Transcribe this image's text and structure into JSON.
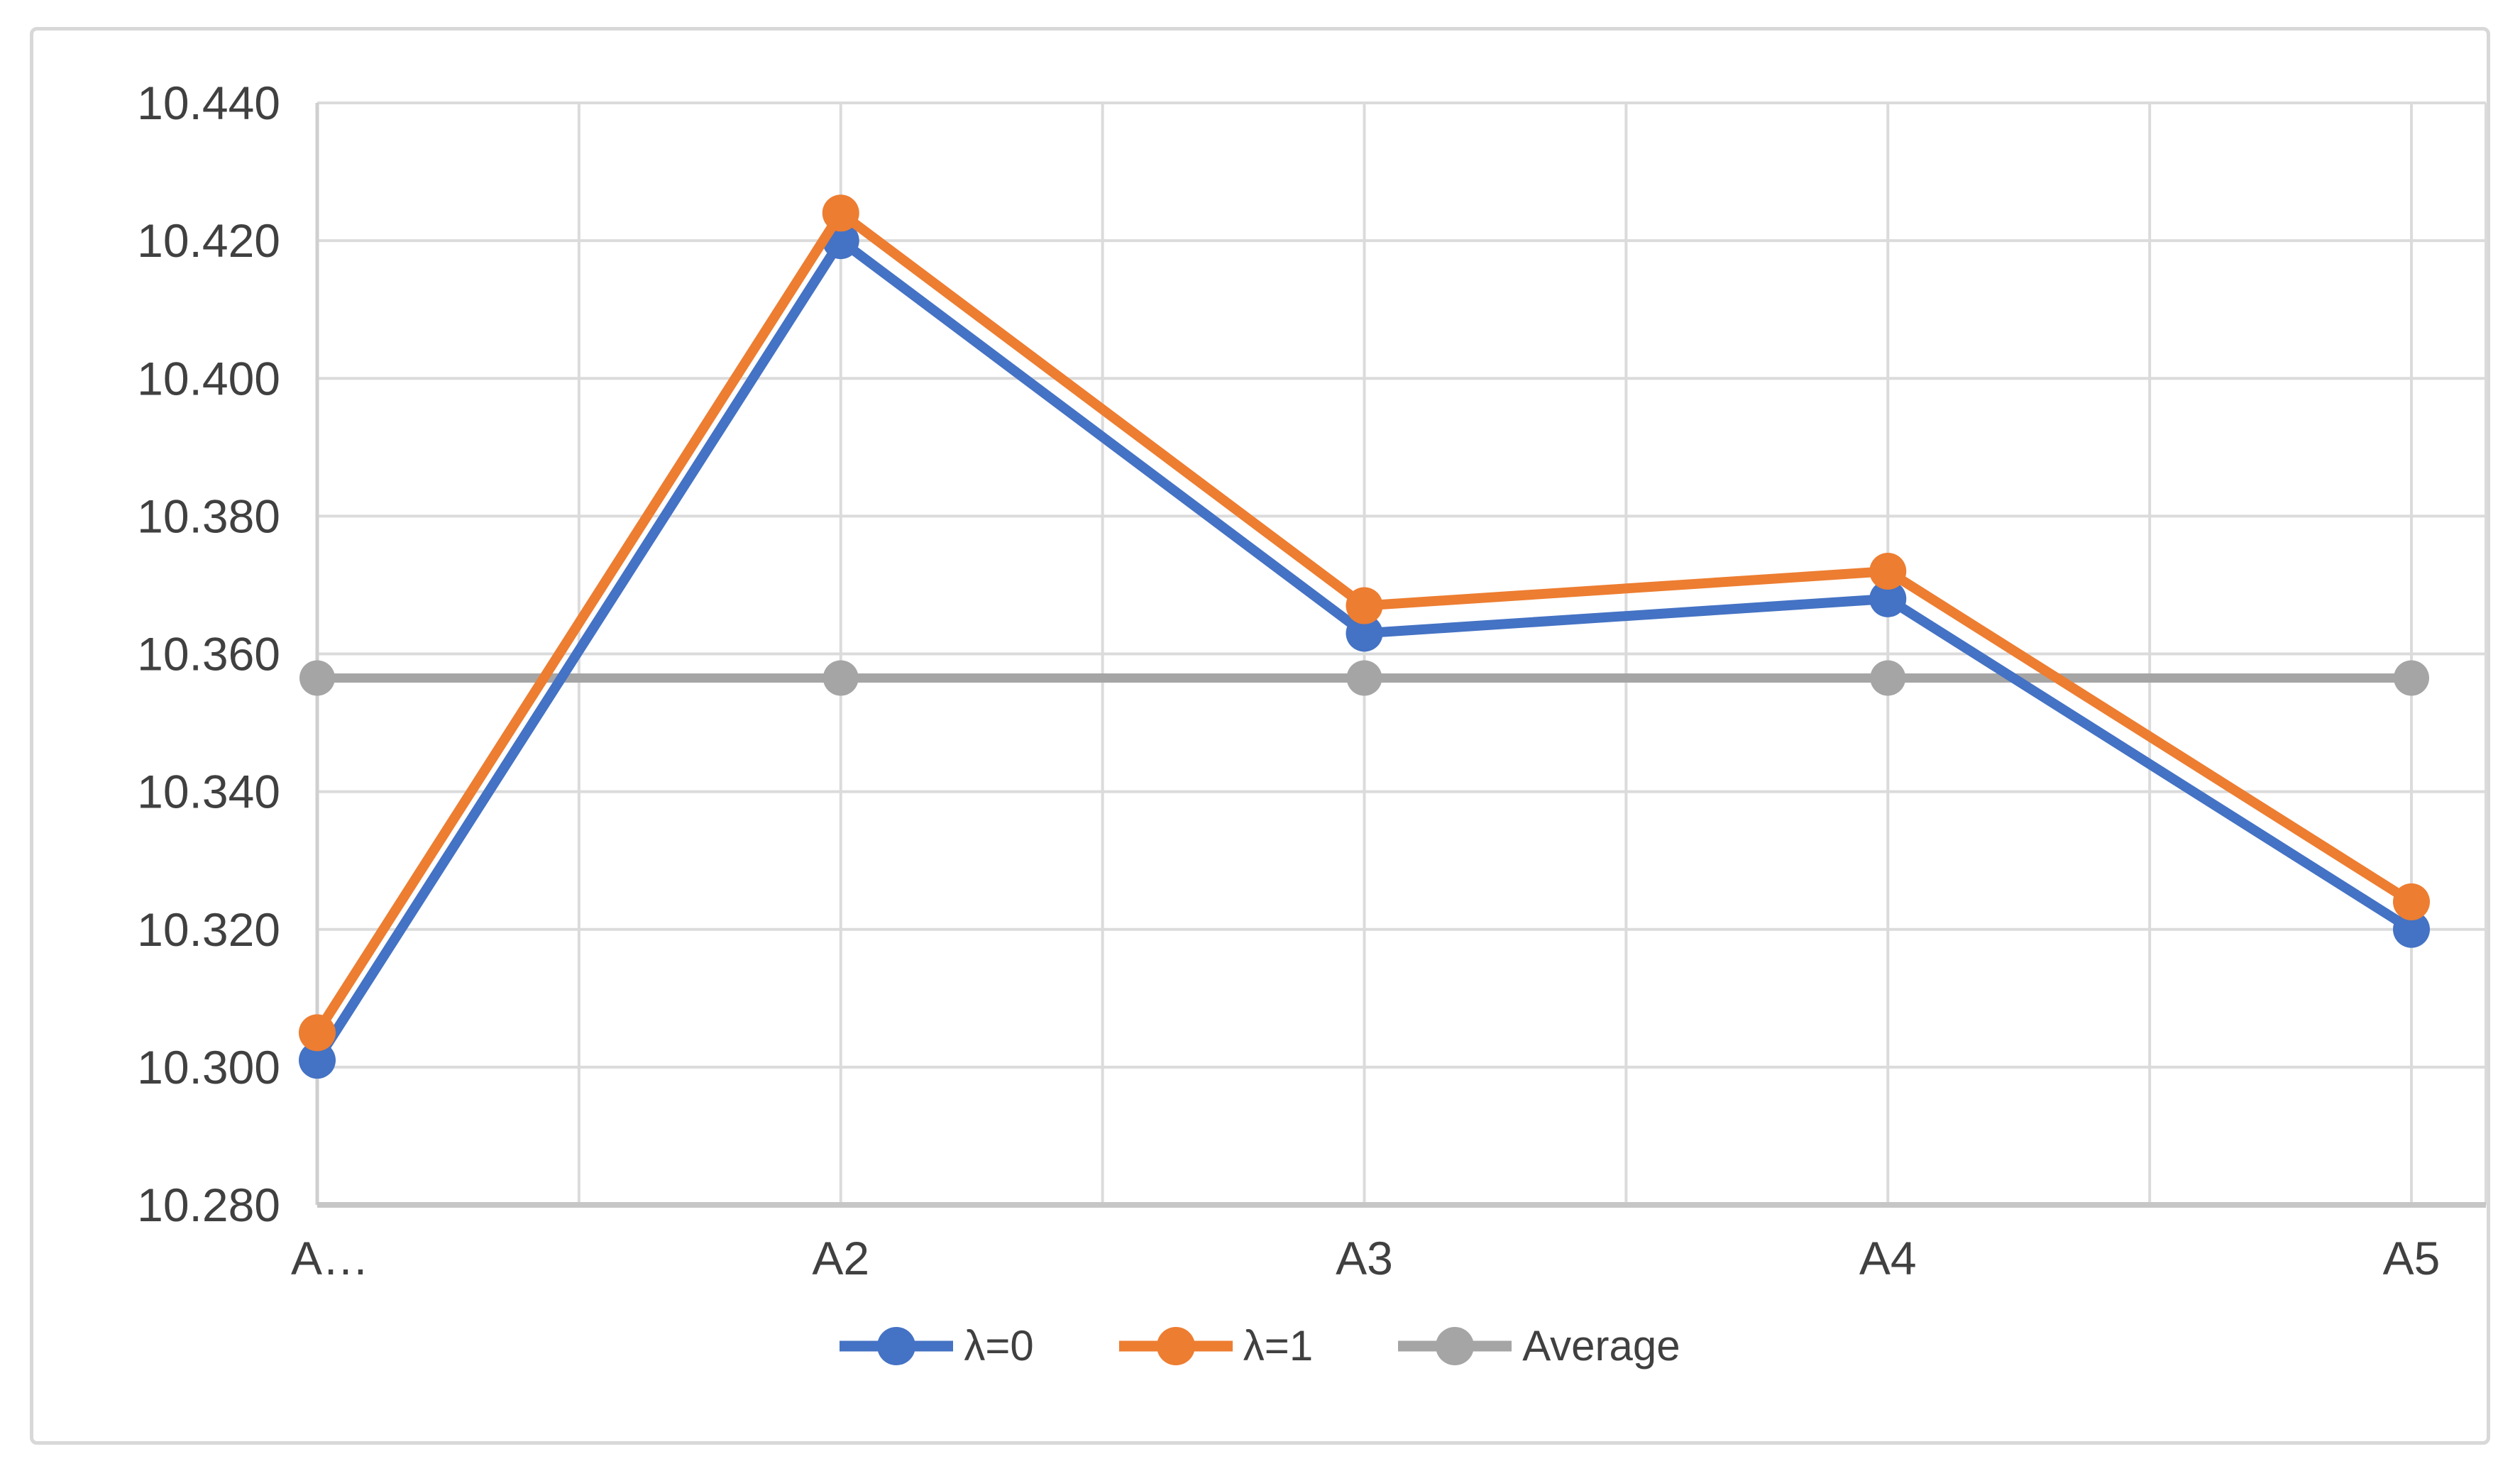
{
  "chart_data": {
    "type": "line",
    "title": "",
    "categories": [
      "A…",
      "A2",
      "A3",
      "A4",
      "A5"
    ],
    "series": [
      {
        "name": "λ=0",
        "color": "#4472C4",
        "values": [
          10.301,
          10.42,
          10.363,
          10.368,
          10.32
        ]
      },
      {
        "name": "λ=1",
        "color": "#ED7D31",
        "values": [
          10.305,
          10.424,
          10.367,
          10.372,
          10.324
        ]
      },
      {
        "name": "Average",
        "color": "#A5A5A5",
        "values": [
          10.3565,
          10.3565,
          10.3565,
          10.3565,
          10.3565
        ]
      }
    ],
    "y_axis": {
      "min": 10.28,
      "max": 10.44,
      "step": 0.02,
      "tick_labels": [
        "10.440",
        "10.420",
        "10.400",
        "10.380",
        "10.360",
        "10.340",
        "10.320",
        "10.300",
        "10.280"
      ]
    },
    "x_axis": {
      "tick_labels": [
        "A…",
        "A2",
        "A3",
        "A4",
        "A5"
      ]
    },
    "legend": {
      "position": "bottom",
      "entries": [
        "λ=0",
        "λ=1",
        "Average"
      ]
    },
    "grid": true
  },
  "colors": {
    "background": "#FFFFFF",
    "frame_border": "#D8D8D8",
    "gridline": "#DBDBDB",
    "x_axis_line": "#C6C6C6",
    "y_axis_line": "#CFCFCF",
    "tick_text": "#404040"
  }
}
